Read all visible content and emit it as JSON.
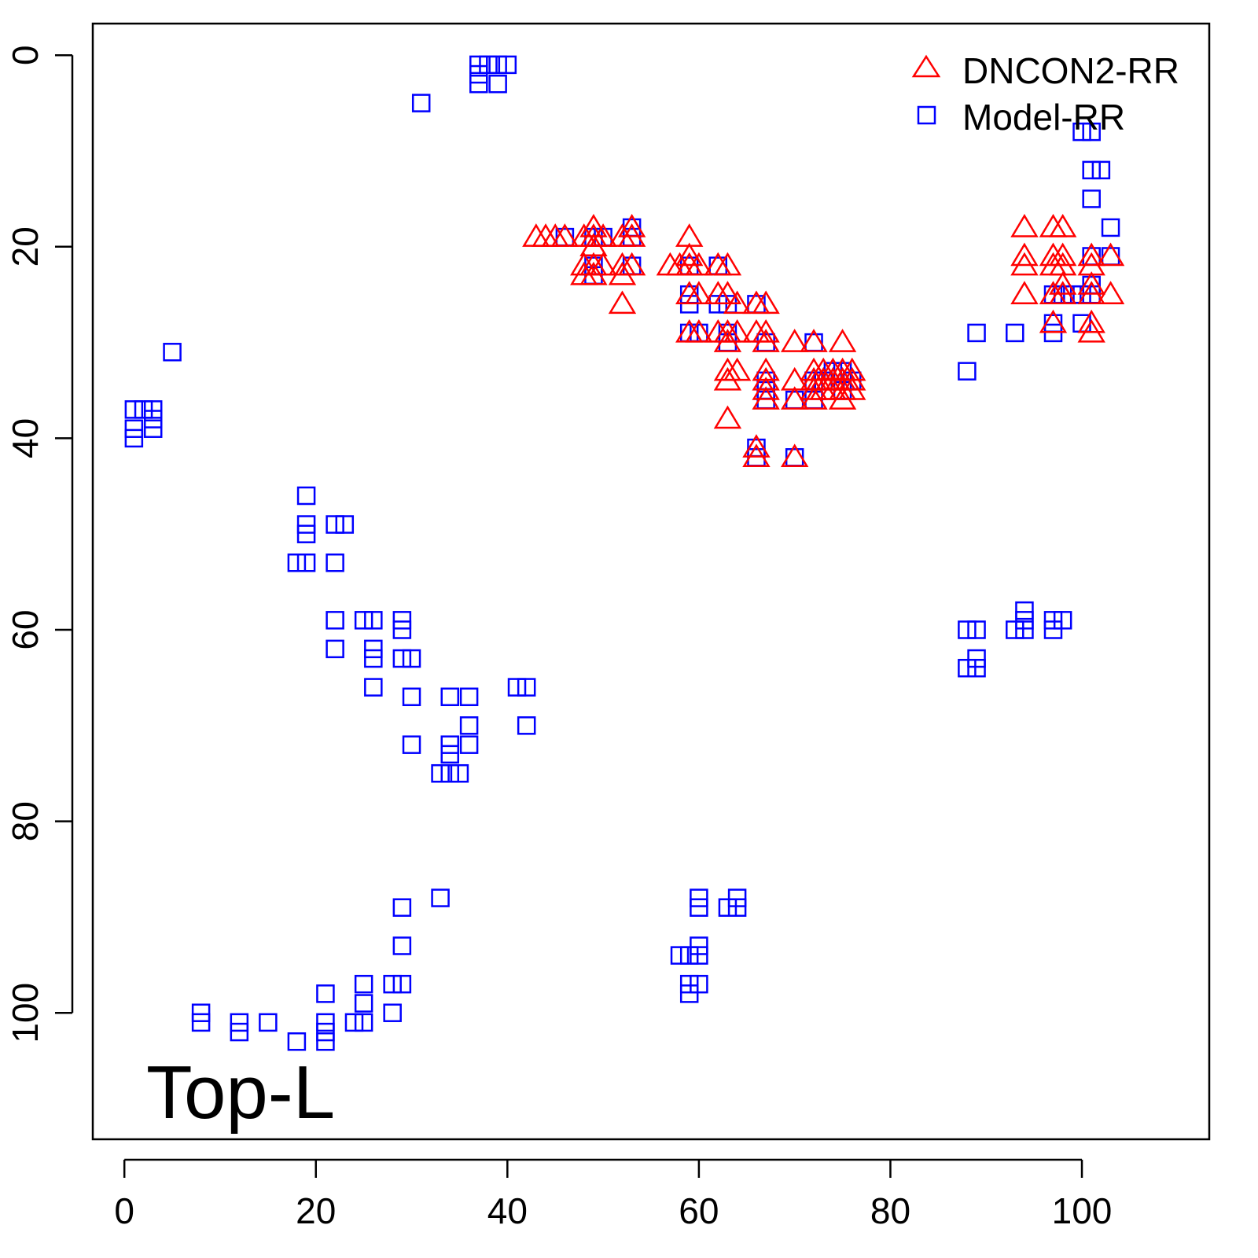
{
  "chart_data": {
    "type": "scatter",
    "title": "",
    "xlabel": "",
    "ylabel": "",
    "annotation": "Top-L",
    "xlim": [
      -3.3,
      113.3
    ],
    "ylim": [
      113.2,
      -3.3
    ],
    "y_inverted": true,
    "grid": false,
    "legend_position": "top-right",
    "x_ticks": [
      0,
      20,
      40,
      60,
      80,
      100
    ],
    "y_ticks": [
      0,
      20,
      40,
      60,
      80,
      100
    ],
    "series": [
      {
        "name": "DNCON2-RR",
        "marker": "triangle-open",
        "color": "#ff0000",
        "points": [
          [
            43,
            19
          ],
          [
            44,
            19
          ],
          [
            45,
            19
          ],
          [
            46,
            19
          ],
          [
            48,
            19
          ],
          [
            49,
            19
          ],
          [
            50,
            19
          ],
          [
            52,
            19
          ],
          [
            53,
            19
          ],
          [
            49,
            18
          ],
          [
            53,
            18
          ],
          [
            49,
            20
          ],
          [
            48,
            22
          ],
          [
            49,
            22
          ],
          [
            50,
            22
          ],
          [
            52,
            22
          ],
          [
            53,
            22
          ],
          [
            57,
            22
          ],
          [
            58,
            22
          ],
          [
            59,
            22
          ],
          [
            60,
            22
          ],
          [
            62,
            22
          ],
          [
            63,
            22
          ],
          [
            48,
            23
          ],
          [
            49,
            23
          ],
          [
            52,
            23
          ],
          [
            52,
            26
          ],
          [
            59,
            19
          ],
          [
            59,
            21
          ],
          [
            59,
            25
          ],
          [
            60,
            25
          ],
          [
            62,
            25
          ],
          [
            63,
            25
          ],
          [
            64,
            26
          ],
          [
            66,
            26
          ],
          [
            67,
            26
          ],
          [
            59,
            29
          ],
          [
            60,
            29
          ],
          [
            62,
            29
          ],
          [
            63,
            29
          ],
          [
            64,
            29
          ],
          [
            66,
            29
          ],
          [
            67,
            29
          ],
          [
            63,
            30
          ],
          [
            67,
            30
          ],
          [
            70,
            30
          ],
          [
            72,
            30
          ],
          [
            75,
            30
          ],
          [
            63,
            33
          ],
          [
            64,
            33
          ],
          [
            67,
            33
          ],
          [
            72,
            33
          ],
          [
            73,
            33
          ],
          [
            74,
            33
          ],
          [
            75,
            33
          ],
          [
            76,
            33
          ],
          [
            63,
            34
          ],
          [
            67,
            34
          ],
          [
            70,
            34
          ],
          [
            72,
            34
          ],
          [
            73,
            34
          ],
          [
            74,
            34
          ],
          [
            75,
            34
          ],
          [
            76,
            34
          ],
          [
            67,
            35
          ],
          [
            72,
            35
          ],
          [
            73,
            35
          ],
          [
            74,
            35
          ],
          [
            75,
            35
          ],
          [
            76,
            35
          ],
          [
            67,
            36
          ],
          [
            70,
            36
          ],
          [
            72,
            36
          ],
          [
            75,
            36
          ],
          [
            63,
            38
          ],
          [
            66,
            41
          ],
          [
            66,
            42
          ],
          [
            70,
            42
          ],
          [
            94,
            18
          ],
          [
            97,
            18
          ],
          [
            98,
            18
          ],
          [
            94,
            21
          ],
          [
            97,
            21
          ],
          [
            98,
            21
          ],
          [
            101,
            21
          ],
          [
            103,
            21
          ],
          [
            94,
            22
          ],
          [
            97,
            22
          ],
          [
            98,
            22
          ],
          [
            101,
            22
          ],
          [
            98,
            24
          ],
          [
            101,
            24
          ],
          [
            94,
            25
          ],
          [
            97,
            25
          ],
          [
            98,
            25
          ],
          [
            101,
            25
          ],
          [
            103,
            25
          ],
          [
            97,
            28
          ],
          [
            101,
            28
          ],
          [
            101,
            29
          ]
        ]
      },
      {
        "name": "Model-RR",
        "marker": "square-open",
        "color": "#0000ff",
        "points": [
          [
            37,
            1
          ],
          [
            37,
            2
          ],
          [
            37,
            3
          ],
          [
            38,
            1
          ],
          [
            39,
            1
          ],
          [
            39,
            3
          ],
          [
            40,
            1
          ],
          [
            31,
            5
          ],
          [
            5,
            31
          ],
          [
            1,
            37
          ],
          [
            1,
            39
          ],
          [
            1,
            40
          ],
          [
            2,
            37
          ],
          [
            3,
            37
          ],
          [
            3,
            38
          ],
          [
            3,
            39
          ],
          [
            19,
            46
          ],
          [
            19,
            49
          ],
          [
            19,
            50
          ],
          [
            18,
            53
          ],
          [
            19,
            53
          ],
          [
            22,
            49
          ],
          [
            23,
            49
          ],
          [
            22,
            53
          ],
          [
            22,
            59
          ],
          [
            22,
            62
          ],
          [
            25,
            59
          ],
          [
            26,
            59
          ],
          [
            26,
            62
          ],
          [
            26,
            63
          ],
          [
            26,
            66
          ],
          [
            29,
            59
          ],
          [
            29,
            60
          ],
          [
            29,
            63
          ],
          [
            30,
            63
          ],
          [
            30,
            67
          ],
          [
            30,
            72
          ],
          [
            34,
            67
          ],
          [
            36,
            67
          ],
          [
            36,
            70
          ],
          [
            36,
            72
          ],
          [
            34,
            72
          ],
          [
            34,
            73
          ],
          [
            33,
            75
          ],
          [
            34,
            75
          ],
          [
            35,
            75
          ],
          [
            41,
            66
          ],
          [
            42,
            66
          ],
          [
            42,
            70
          ],
          [
            33,
            88
          ],
          [
            29,
            89
          ],
          [
            29,
            93
          ],
          [
            28,
            97
          ],
          [
            29,
            97
          ],
          [
            28,
            100
          ],
          [
            25,
            97
          ],
          [
            25,
            99
          ],
          [
            25,
            101
          ],
          [
            24,
            101
          ],
          [
            21,
            98
          ],
          [
            21,
            101
          ],
          [
            21,
            102
          ],
          [
            21,
            103
          ],
          [
            18,
            103
          ],
          [
            15,
            101
          ],
          [
            12,
            101
          ],
          [
            12,
            102
          ],
          [
            8,
            100
          ],
          [
            8,
            101
          ],
          [
            60,
            88
          ],
          [
            60,
            89
          ],
          [
            63,
            89
          ],
          [
            64,
            88
          ],
          [
            64,
            89
          ],
          [
            60,
            93
          ],
          [
            60,
            94
          ],
          [
            59,
            94
          ],
          [
            58,
            94
          ],
          [
            59,
            97
          ],
          [
            60,
            97
          ],
          [
            59,
            98
          ],
          [
            88,
            60
          ],
          [
            89,
            60
          ],
          [
            89,
            63
          ],
          [
            88,
            64
          ],
          [
            89,
            64
          ],
          [
            93,
            60
          ],
          [
            94,
            58
          ],
          [
            94,
            59
          ],
          [
            94,
            60
          ],
          [
            97,
            59
          ],
          [
            98,
            59
          ],
          [
            97,
            60
          ],
          [
            88,
            33
          ],
          [
            89,
            29
          ],
          [
            93,
            29
          ],
          [
            97,
            28
          ],
          [
            97,
            29
          ],
          [
            100,
            28
          ],
          [
            100,
            8
          ],
          [
            101,
            8
          ],
          [
            101,
            12
          ],
          [
            102,
            12
          ],
          [
            101,
            15
          ],
          [
            103,
            18
          ],
          [
            101,
            21
          ],
          [
            103,
            21
          ],
          [
            101,
            24
          ],
          [
            101,
            25
          ],
          [
            97,
            25
          ],
          [
            98,
            25
          ],
          [
            99,
            25
          ],
          [
            100,
            25
          ],
          [
            46,
            19
          ],
          [
            49,
            19
          ],
          [
            50,
            19
          ],
          [
            53,
            18
          ],
          [
            53,
            19
          ],
          [
            49,
            22
          ],
          [
            49,
            23
          ],
          [
            53,
            22
          ],
          [
            59,
            22
          ],
          [
            59,
            25
          ],
          [
            59,
            26
          ],
          [
            59,
            29
          ],
          [
            60,
            29
          ],
          [
            62,
            22
          ],
          [
            62,
            26
          ],
          [
            63,
            26
          ],
          [
            63,
            29
          ],
          [
            63,
            30
          ],
          [
            66,
            26
          ],
          [
            66,
            41
          ],
          [
            66,
            42
          ],
          [
            67,
            30
          ],
          [
            67,
            34
          ],
          [
            67,
            35
          ],
          [
            67,
            36
          ],
          [
            70,
            36
          ],
          [
            70,
            42
          ],
          [
            72,
            30
          ],
          [
            72,
            34
          ],
          [
            72,
            36
          ],
          [
            73,
            34
          ],
          [
            74,
            33
          ],
          [
            75,
            33
          ],
          [
            75,
            35
          ],
          [
            76,
            34
          ]
        ]
      }
    ]
  }
}
